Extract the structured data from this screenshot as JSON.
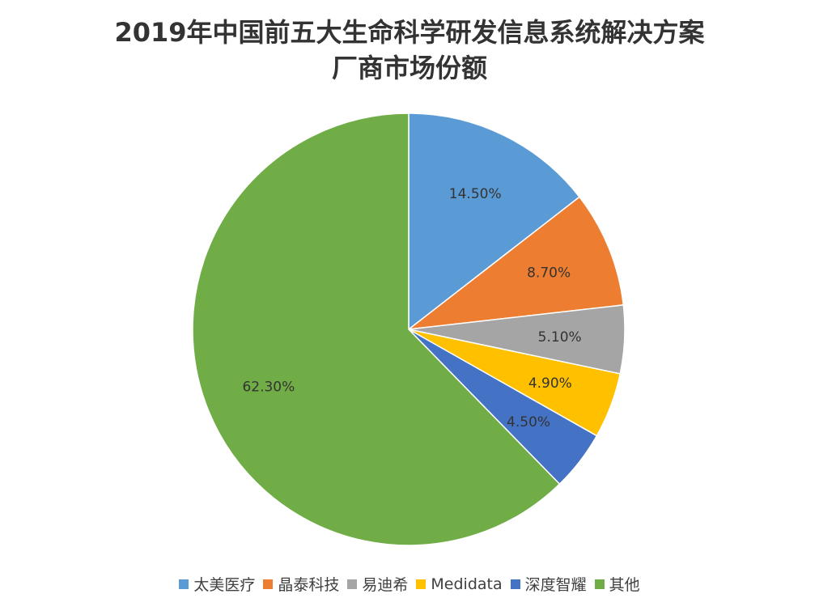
{
  "chart_data": {
    "type": "pie",
    "title_line1": "2019年中国前五大生命科学研发信息系统解决方案",
    "title_line2": "厂商市场份额",
    "categories": [
      "太美医疗",
      "晶泰科技",
      "易迪希",
      "Medidata",
      "深度智耀",
      "其他"
    ],
    "values": [
      14.5,
      8.7,
      5.1,
      4.9,
      4.5,
      62.3
    ],
    "labels": [
      "14.50%",
      "8.70%",
      "5.10%",
      "4.90%",
      "4.50%",
      "62.30%"
    ],
    "colors": [
      "#5b9bd5",
      "#ed7d31",
      "#a5a5a5",
      "#ffc000",
      "#4472c4",
      "#70ad47"
    ],
    "legend_position": "bottom"
  }
}
